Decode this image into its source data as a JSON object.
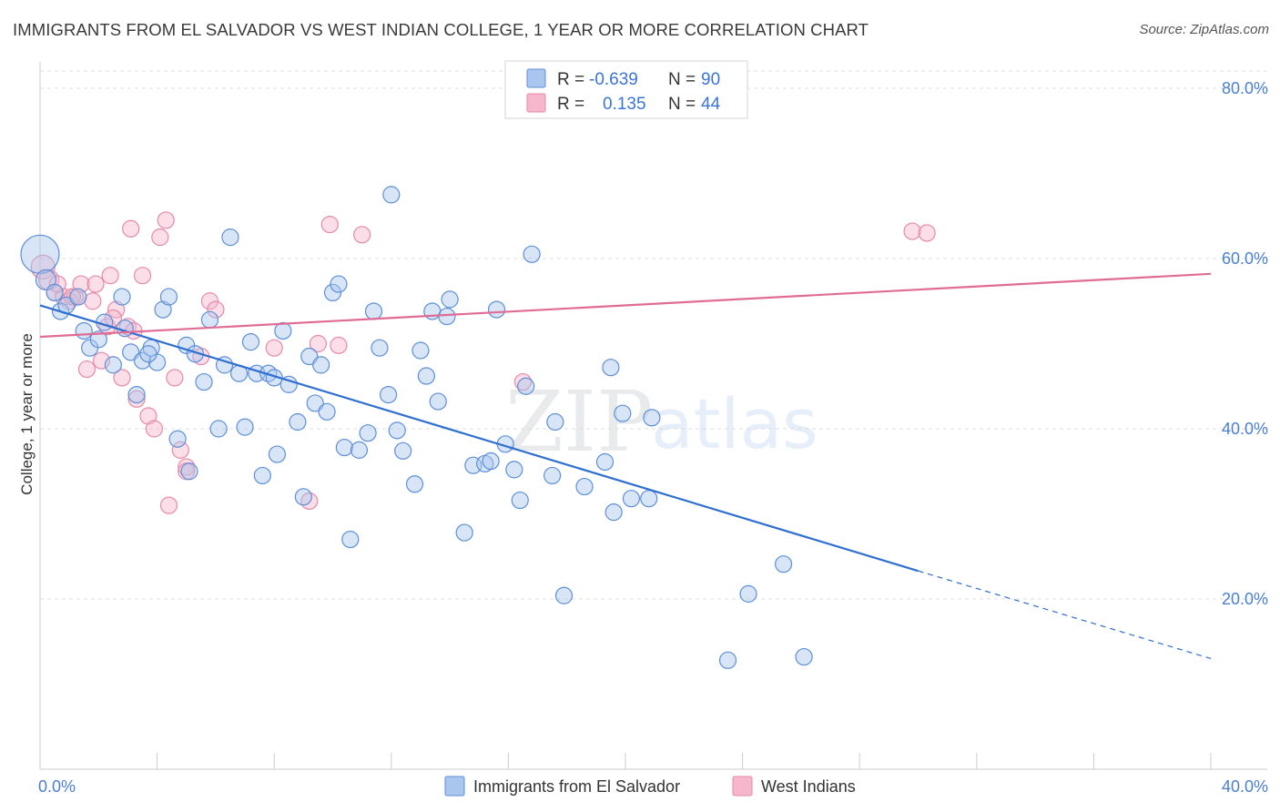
{
  "header": {
    "title": "IMMIGRANTS FROM EL SALVADOR VS WEST INDIAN COLLEGE, 1 YEAR OR MORE CORRELATION CHART",
    "source": "Source: ZipAtlas.com"
  },
  "watermark": {
    "zip": "ZIP",
    "atlas": "atlas"
  },
  "legend": {
    "rows": [
      {
        "r_label": "R =",
        "r_value": "-0.639",
        "n_label": "N =",
        "n_value": "90"
      },
      {
        "r_label": "R =",
        "r_value": "0.135",
        "n_label": "N =",
        "n_value": "44"
      }
    ]
  },
  "bottom_legend": {
    "items": [
      {
        "label": "Immigrants from El Salvador"
      },
      {
        "label": "West Indians"
      }
    ]
  },
  "colors": {
    "blue_fill": "#a9c6ee",
    "blue_stroke": "#5d8fd8",
    "blue_line": "#2f6fd0",
    "pink_fill": "#f6b6cb",
    "pink_stroke": "#e58aa8",
    "pink_line": "#e06b95",
    "grid": "#dcdcdc",
    "tick_text": "#4a7fd0"
  },
  "chart_data": {
    "type": "scatter",
    "title": "IMMIGRANTS FROM EL SALVADOR VS WEST INDIAN COLLEGE, 1 YEAR OR MORE CORRELATION CHART",
    "xlabel": "",
    "ylabel": "College, 1 year or more",
    "xlim": [
      0,
      40
    ],
    "ylim": [
      0,
      85
    ],
    "x_ticks": [
      0,
      40
    ],
    "x_tick_labels": [
      "0.0%",
      "40.0%"
    ],
    "y_ticks": [
      20,
      40,
      60,
      80
    ],
    "y_tick_labels": [
      "20.0%",
      "40.0%",
      "60.0%",
      "80.0%"
    ],
    "grid": true,
    "legend_position": "top-center",
    "series": [
      {
        "name": "Immigrants from El Salvador",
        "R": -0.639,
        "N": 90,
        "trend": {
          "x0": 0,
          "y0": 54.5,
          "x1": 30,
          "y1": 23.3,
          "dashed_to_x": 40,
          "dashed_to_y": 13.0
        },
        "points": [
          [
            0.0,
            60.5,
            22
          ],
          [
            0.2,
            57.5,
            12
          ],
          [
            0.5,
            56.0,
            10
          ],
          [
            0.7,
            53.8,
            10
          ],
          [
            0.9,
            54.5,
            10
          ],
          [
            1.3,
            55.5,
            10
          ],
          [
            1.5,
            51.5,
            10
          ],
          [
            1.7,
            49.5,
            10
          ],
          [
            2.0,
            50.5,
            10
          ],
          [
            2.2,
            52.5,
            10
          ],
          [
            2.5,
            47.5,
            10
          ],
          [
            2.8,
            55.5,
            10
          ],
          [
            2.9,
            51.8,
            10
          ],
          [
            3.1,
            49.0,
            10
          ],
          [
            3.3,
            44.0,
            10
          ],
          [
            3.5,
            48.0,
            10
          ],
          [
            3.8,
            49.5,
            10
          ],
          [
            4.0,
            47.8,
            10
          ],
          [
            4.2,
            54.0,
            10
          ],
          [
            4.4,
            55.5,
            10
          ],
          [
            4.7,
            38.8,
            10
          ],
          [
            5.0,
            49.8,
            10
          ],
          [
            5.1,
            35.0,
            10
          ],
          [
            5.3,
            48.8,
            10
          ],
          [
            5.6,
            45.5,
            10
          ],
          [
            5.8,
            52.8,
            10
          ],
          [
            6.1,
            40.0,
            10
          ],
          [
            6.3,
            47.5,
            10
          ],
          [
            6.5,
            62.5,
            10
          ],
          [
            6.8,
            46.5,
            10
          ],
          [
            7.0,
            40.2,
            10
          ],
          [
            7.2,
            50.2,
            10
          ],
          [
            7.4,
            46.5,
            10
          ],
          [
            7.6,
            34.5,
            10
          ],
          [
            7.8,
            46.5,
            10
          ],
          [
            8.0,
            46.0,
            10
          ],
          [
            8.1,
            37.0,
            10
          ],
          [
            8.3,
            51.5,
            10
          ],
          [
            8.5,
            45.2,
            10
          ],
          [
            8.8,
            40.8,
            10
          ],
          [
            9.0,
            32.0,
            10
          ],
          [
            9.2,
            48.5,
            10
          ],
          [
            9.4,
            43.0,
            10
          ],
          [
            9.6,
            47.5,
            10
          ],
          [
            9.8,
            42.0,
            10
          ],
          [
            10.0,
            56.0,
            10
          ],
          [
            10.2,
            57.0,
            10
          ],
          [
            10.4,
            37.8,
            10
          ],
          [
            10.6,
            27.0,
            10
          ],
          [
            10.9,
            37.5,
            10
          ],
          [
            11.2,
            39.5,
            10
          ],
          [
            11.4,
            53.8,
            10
          ],
          [
            11.6,
            49.5,
            10
          ],
          [
            11.9,
            44.0,
            10
          ],
          [
            12.0,
            67.5,
            10
          ],
          [
            12.2,
            39.8,
            10
          ],
          [
            12.4,
            37.4,
            10
          ],
          [
            12.8,
            33.5,
            10
          ],
          [
            13.0,
            49.2,
            10
          ],
          [
            13.2,
            46.2,
            10
          ],
          [
            13.4,
            53.8,
            10
          ],
          [
            13.6,
            43.2,
            10
          ],
          [
            13.9,
            53.2,
            10
          ],
          [
            14.0,
            55.2,
            10
          ],
          [
            14.5,
            27.8,
            10
          ],
          [
            14.8,
            35.7,
            10
          ],
          [
            15.2,
            35.9,
            10
          ],
          [
            15.4,
            36.2,
            10
          ],
          [
            15.6,
            54.0,
            10
          ],
          [
            15.9,
            38.2,
            10
          ],
          [
            16.2,
            35.2,
            10
          ],
          [
            16.4,
            31.6,
            10
          ],
          [
            16.6,
            45.0,
            10
          ],
          [
            16.8,
            60.5,
            10
          ],
          [
            17.5,
            34.5,
            10
          ],
          [
            17.9,
            20.4,
            10
          ],
          [
            17.6,
            40.8,
            10
          ],
          [
            18.6,
            33.2,
            10
          ],
          [
            19.6,
            30.2,
            10
          ],
          [
            19.3,
            36.1,
            10
          ],
          [
            19.5,
            47.2,
            10
          ],
          [
            19.9,
            41.8,
            10
          ],
          [
            20.2,
            31.8,
            10
          ],
          [
            20.8,
            31.8,
            10
          ],
          [
            20.9,
            41.3,
            10
          ],
          [
            23.5,
            12.8,
            10
          ],
          [
            24.2,
            20.6,
            10
          ],
          [
            25.4,
            24.1,
            10
          ],
          [
            26.1,
            13.2,
            10
          ],
          [
            3.7,
            48.8,
            10
          ]
        ]
      },
      {
        "name": "West Indians",
        "R": 0.135,
        "N": 44,
        "trend": {
          "x0": 0,
          "y0": 50.8,
          "x1": 40,
          "y1": 58.2
        },
        "points": [
          [
            0.1,
            59.0,
            14
          ],
          [
            0.3,
            57.5,
            12
          ],
          [
            0.5,
            56.0,
            10
          ],
          [
            0.8,
            55.5,
            10
          ],
          [
            1.0,
            55.0,
            10
          ],
          [
            1.2,
            55.5,
            10
          ],
          [
            1.4,
            57.0,
            10
          ],
          [
            1.6,
            47.0,
            10
          ],
          [
            1.8,
            55.0,
            10
          ],
          [
            1.9,
            57.0,
            10
          ],
          [
            2.1,
            48.0,
            10
          ],
          [
            2.3,
            52.0,
            10
          ],
          [
            2.4,
            58.0,
            10
          ],
          [
            2.6,
            54.0,
            10
          ],
          [
            2.8,
            46.0,
            10
          ],
          [
            3.0,
            52.0,
            10
          ],
          [
            3.1,
            63.5,
            10
          ],
          [
            3.3,
            43.5,
            10
          ],
          [
            3.5,
            58.0,
            10
          ],
          [
            3.7,
            41.5,
            10
          ],
          [
            3.9,
            40.0,
            10
          ],
          [
            4.1,
            62.5,
            10
          ],
          [
            4.3,
            64.5,
            10
          ],
          [
            4.4,
            31.0,
            10
          ],
          [
            4.6,
            46.0,
            10
          ],
          [
            4.8,
            37.5,
            10
          ],
          [
            5.0,
            35.5,
            10
          ],
          [
            5.0,
            35.0,
            10
          ],
          [
            5.5,
            48.5,
            10
          ],
          [
            5.8,
            55.0,
            10
          ],
          [
            6.0,
            54.0,
            10
          ],
          [
            8.0,
            49.5,
            10
          ],
          [
            9.2,
            31.5,
            10
          ],
          [
            9.5,
            50.0,
            10
          ],
          [
            9.9,
            64.0,
            10
          ],
          [
            10.2,
            49.8,
            10
          ],
          [
            11.0,
            62.8,
            10
          ],
          [
            16.5,
            45.5,
            10
          ],
          [
            29.8,
            63.2,
            10
          ],
          [
            30.3,
            63.0,
            10
          ],
          [
            0.6,
            57.0,
            10
          ],
          [
            1.1,
            55.5,
            10
          ],
          [
            2.5,
            53.0,
            10
          ],
          [
            3.2,
            51.5,
            10
          ]
        ]
      }
    ]
  }
}
